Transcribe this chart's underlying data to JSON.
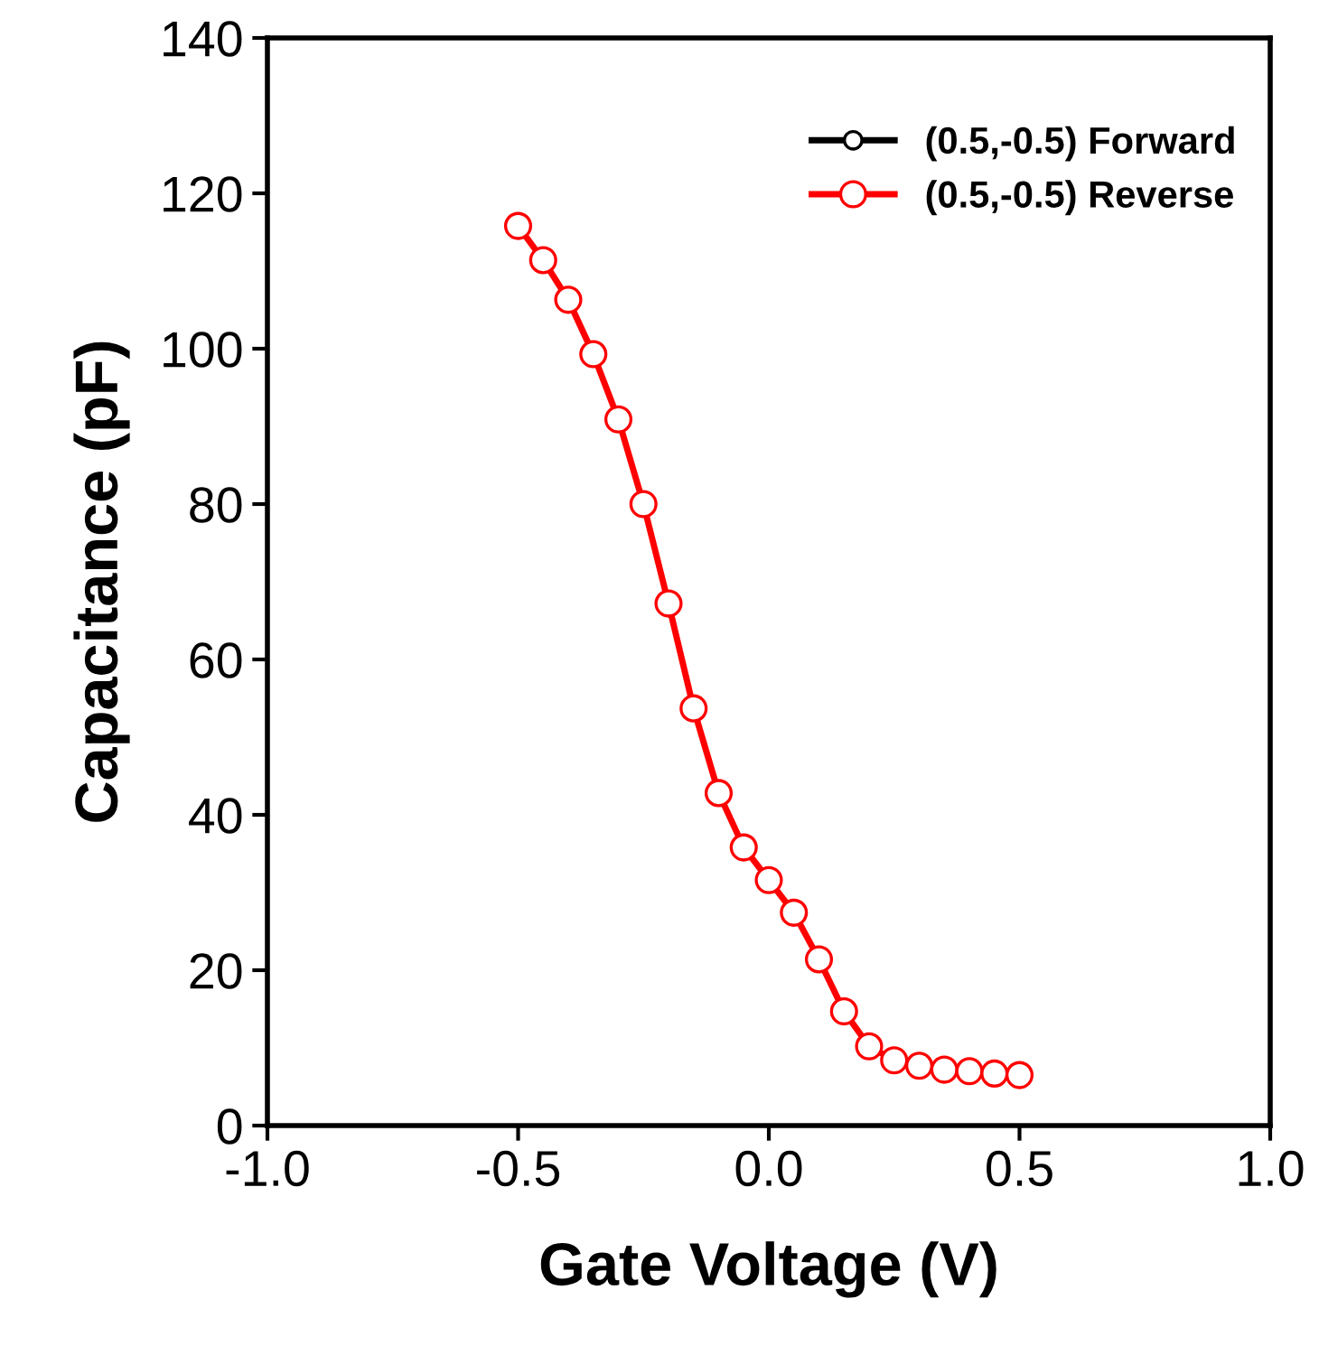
{
  "chart_data": {
    "type": "line",
    "xlabel": "Gate Voltage (V)",
    "ylabel": "Capacitance (pF)",
    "x": [
      -0.5,
      -0.45,
      -0.4,
      -0.35,
      -0.3,
      -0.25,
      -0.2,
      -0.15,
      -0.1,
      -0.05,
      0,
      0.05,
      0.1,
      0.15,
      0.2,
      0.25,
      0.3,
      0.35,
      0.4,
      0.45,
      0.5
    ],
    "series": [
      {
        "name": "(0.5,-0.5) Forward",
        "color": "#000000",
        "values": [
          null,
          null,
          null,
          null,
          null,
          null,
          null,
          null,
          null,
          null,
          null,
          null,
          null,
          null,
          null,
          null,
          null,
          null,
          null,
          null,
          null
        ]
      },
      {
        "name": "(0.5,-0.5) Reverse",
        "color": "#ff0000",
        "values": [
          115.8,
          111.4,
          106.3,
          99.3,
          90.9,
          80.0,
          67.2,
          53.7,
          42.8,
          35.8,
          31.6,
          27.4,
          21.4,
          14.7,
          10.2,
          8.4,
          7.7,
          7.2,
          7.0,
          6.7,
          6.5
        ]
      }
    ],
    "xlim": [
      -1.0,
      1.0
    ],
    "xticks": [
      {
        "value": -1.0,
        "label": "-1.0"
      },
      {
        "value": -0.5,
        "label": "-0.5"
      },
      {
        "value": 0.0,
        "label": "0.0"
      },
      {
        "value": 0.5,
        "label": "0.5"
      },
      {
        "value": 1.0,
        "label": "1.0"
      }
    ],
    "ylim": [
      0,
      140
    ],
    "yticks": [
      0,
      20,
      40,
      60,
      80,
      100,
      120,
      140
    ],
    "marker": "circle",
    "line_style": "solid",
    "legend": "top right",
    "grid": false
  }
}
